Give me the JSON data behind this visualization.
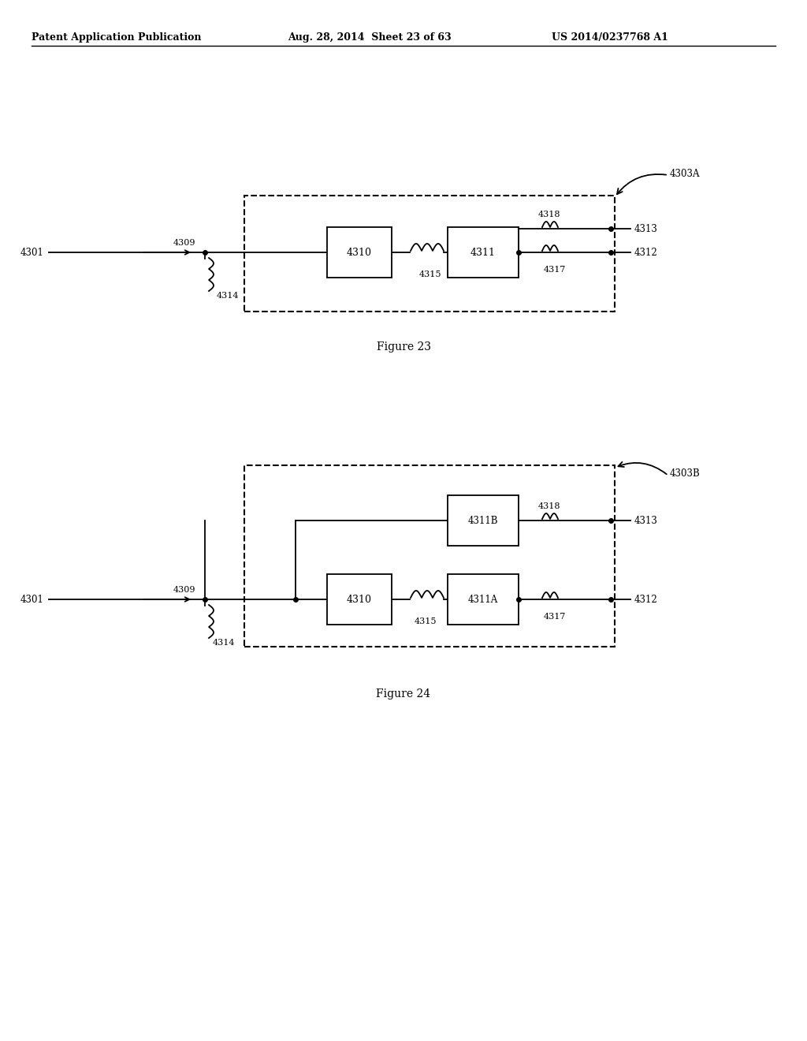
{
  "bg_color": "#ffffff",
  "header_left": "Patent Application Publication",
  "header_mid": "Aug. 28, 2014  Sheet 23 of 63",
  "header_right": "US 2014/0237768 A1",
  "fig23_label": "Figure 23",
  "fig24_label": "Figure 24"
}
